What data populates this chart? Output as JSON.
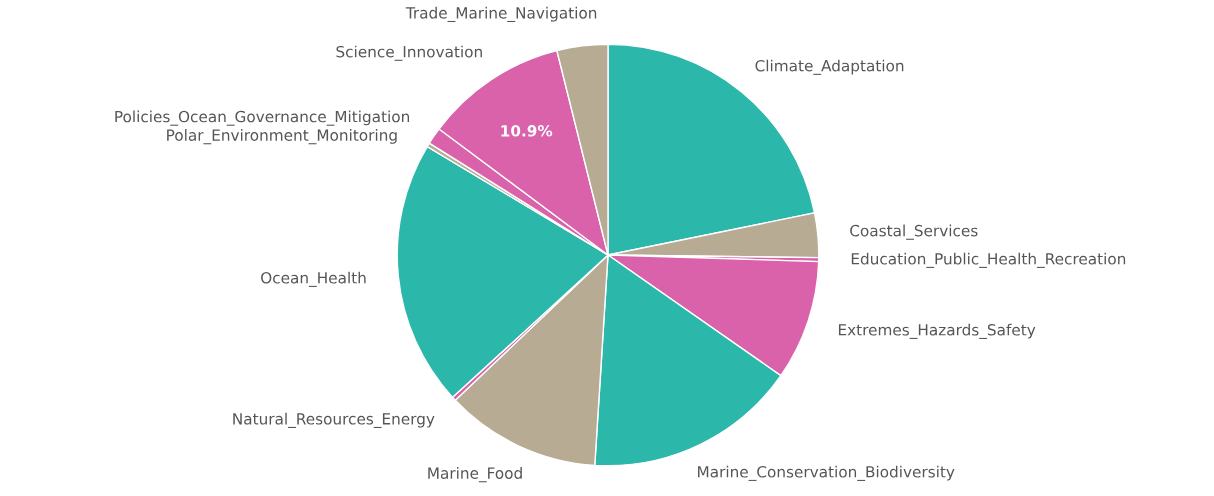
{
  "chart_data": {
    "type": "pie",
    "categories": [
      "Climate_Adaptation",
      "Coastal_Services",
      "Education_Public_Health_Recreation",
      "Extremes_Hazards_Safety",
      "Marine_Conservation_Biodiversity",
      "Marine_Food",
      "Natural_Resources_Energy",
      "Ocean_Health",
      "Polar_Environment_Monitoring",
      "Policies_Ocean_Governance_Mitigation",
      "Science_Innovation",
      "Trade_Marine_Navigation"
    ],
    "values": [
      21.8,
      3.4,
      0.3,
      9.2,
      16.3,
      11.9,
      0.3,
      20.4,
      0.3,
      1.3,
      10.9,
      3.9
    ],
    "colors": [
      "#2bb7a9",
      "#b7ab93",
      "#d962aa",
      "#d962aa",
      "#2bb7a9",
      "#b7ab93",
      "#d962aa",
      "#2bb7a9",
      "#b7ab93",
      "#d962aa",
      "#d962aa",
      "#b7ab93"
    ],
    "value_labels": [
      null,
      null,
      null,
      null,
      null,
      null,
      null,
      null,
      null,
      null,
      "10.9%",
      null
    ]
  }
}
